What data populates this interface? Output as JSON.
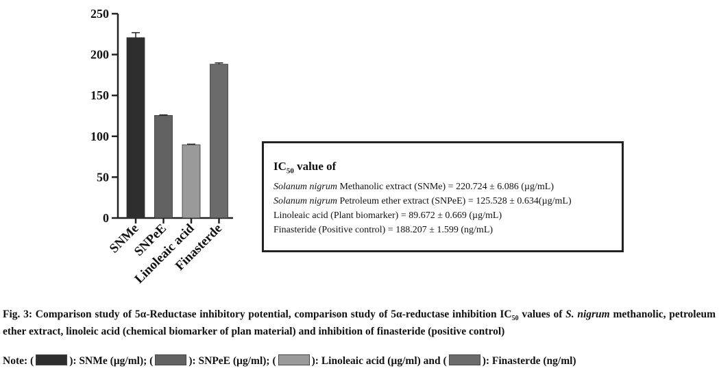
{
  "chart_data": {
    "type": "bar",
    "categories": [
      "SNMe",
      "SNPeE",
      "Linoleaic acid",
      "Finasterde"
    ],
    "values": [
      220.724,
      125.528,
      89.672,
      188.207
    ],
    "errors": [
      6.086,
      0.634,
      0.669,
      1.599
    ],
    "bar_colors": [
      "#2e2e2e",
      "#626262",
      "#9a9a9a",
      "#6b6b6b"
    ],
    "ylim": [
      0,
      250
    ],
    "yticks": [
      "0",
      "50",
      "100",
      "150",
      "200",
      "250"
    ],
    "xlabel": "",
    "ylabel": "",
    "grid": false
  },
  "legend_box": {
    "title_main": "IC",
    "title_sub": "50",
    "title_rest": " value of",
    "lines": [
      {
        "italic": "Solanum nigrum",
        "text": " Methanolic extract (SNMe) = 220.724 ± 6.086 (µg/mL)"
      },
      {
        "italic": "Solanum nigrum",
        "text": " Petroleum ether extract (SNPeE) = 125.528 ± 0.634(µg/mL)"
      },
      {
        "italic": "",
        "text": "Linoleaic acid (Plant biomarker) = 89.672 ± 0.669 (µg/mL)"
      },
      {
        "italic": "",
        "text": "Finasteride (Positive control) = 188.207 ± 1.599 (ng/mL)"
      }
    ]
  },
  "caption": {
    "part1": "Fig. 3: Comparison study of 5α-Reductase inhibitory potential, comparison study of 5α-reductase inhibition IC",
    "sub": "50",
    "part2": " values of ",
    "italic": "S. nigrum",
    "part3": " methanolic, petroleum ether extract, linoleic acid (chemical biomarker of plan material) and inhibition of finasteride (positive control)"
  },
  "note": {
    "prefix": "Note: (",
    "items": [
      {
        "label": "): SNMe (µg/ml); (",
        "color": "#2e2e2e"
      },
      {
        "label": "): SNPeE (µg/ml); (",
        "color": "#626262"
      },
      {
        "label": "): Linoleaic acid (µg/ml) and (",
        "color": "#9a9a9a"
      },
      {
        "label": "): Finasterde (ng/ml)",
        "color": "#6b6b6b"
      }
    ]
  }
}
